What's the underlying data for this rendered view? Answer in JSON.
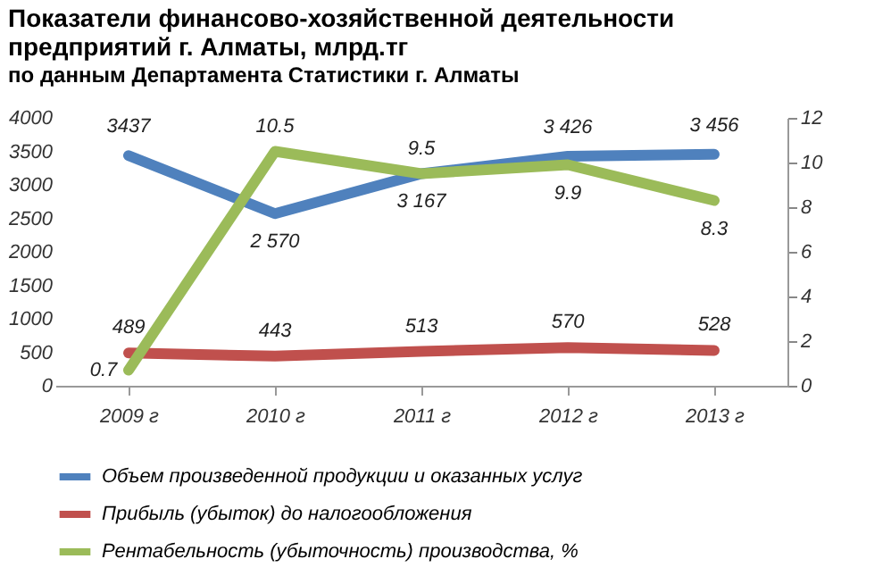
{
  "chart_data": {
    "type": "line",
    "title": "Показатели финансово-хозяйственной деятельности предприятий г. Алматы, млрд.тг",
    "subtitle": "по данным Департамента Статистики г. Алматы",
    "categories": [
      "2009 г",
      "2010 г",
      "2011 г",
      "2012 г",
      "2013 г"
    ],
    "series": [
      {
        "name": "Объем произведенной продукции и оказанных услуг",
        "color": "#4f81bd",
        "values": [
          3437,
          2570,
          3167,
          3426,
          3456
        ],
        "value_labels": [
          "3437",
          "2 570",
          "3 167",
          "3 426",
          "3 456"
        ]
      },
      {
        "name": "Прибыль (убыток) до налогообложения",
        "color": "#c0504d",
        "values": [
          489,
          443,
          513,
          570,
          528
        ],
        "value_labels": [
          "489",
          "443",
          "513",
          "570",
          "528"
        ]
      },
      {
        "name": "Рентабельность (убыточность) производства,  %",
        "color": "#9bbb59",
        "values": [
          0.7,
          10.5,
          9.5,
          9.9,
          8.3
        ],
        "axis": "y2",
        "value_labels": [
          "0.7",
          "10.5",
          "9.5",
          "9.9",
          "8.3"
        ]
      }
    ],
    "ylim": [
      0,
      4000
    ],
    "yticks": [
      0,
      500,
      1000,
      1500,
      2000,
      2500,
      3000,
      3500,
      4000
    ],
    "y2lim": [
      0,
      12
    ],
    "y2ticks": [
      0,
      2,
      4,
      6,
      8,
      10,
      12
    ],
    "grid": false,
    "legend": "bottom",
    "marker": "none",
    "line_style": "solid"
  }
}
